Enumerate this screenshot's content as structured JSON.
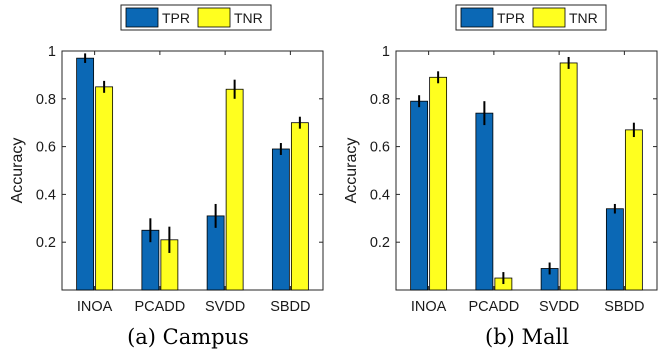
{
  "colors": {
    "tpr": "#0b68b5",
    "tnr": "#ffff1f",
    "axis": "#262626",
    "error_bar": "#000000"
  },
  "chart_data": [
    {
      "type": "bar",
      "caption": "(a) Campus",
      "ylabel": "Accuracy",
      "categories": [
        "INOA",
        "PCADD",
        "SVDD",
        "SBDD"
      ],
      "ylim": [
        0,
        1
      ],
      "yticks": [
        0.2,
        0.4,
        0.6,
        0.8,
        1
      ],
      "ytick_labels": [
        "0.2",
        "0.4",
        "0.6",
        "0.8",
        "1"
      ],
      "legend": {
        "placement": "top",
        "orientation": "horizontal"
      },
      "grid": false,
      "series": [
        {
          "name": "TPR",
          "values": [
            0.97,
            0.25,
            0.31,
            0.59
          ],
          "errors": [
            0.02,
            0.05,
            0.05,
            0.025
          ]
        },
        {
          "name": "TNR",
          "values": [
            0.85,
            0.21,
            0.84,
            0.7
          ],
          "errors": [
            0.025,
            0.055,
            0.04,
            0.025
          ]
        }
      ]
    },
    {
      "type": "bar",
      "caption": "(b) Mall",
      "ylabel": "Accuracy",
      "categories": [
        "INOA",
        "PCADD",
        "SVDD",
        "SBDD"
      ],
      "ylim": [
        0,
        1
      ],
      "yticks": [
        0.2,
        0.4,
        0.6,
        0.8,
        1
      ],
      "ytick_labels": [
        "0.2",
        "0.4",
        "0.6",
        "0.8",
        "1"
      ],
      "legend": {
        "placement": "top",
        "orientation": "horizontal"
      },
      "grid": false,
      "series": [
        {
          "name": "TPR",
          "values": [
            0.79,
            0.74,
            0.09,
            0.34
          ],
          "errors": [
            0.025,
            0.05,
            0.025,
            0.02
          ]
        },
        {
          "name": "TNR",
          "values": [
            0.89,
            0.05,
            0.95,
            0.67
          ],
          "errors": [
            0.025,
            0.025,
            0.025,
            0.03
          ]
        }
      ]
    }
  ]
}
